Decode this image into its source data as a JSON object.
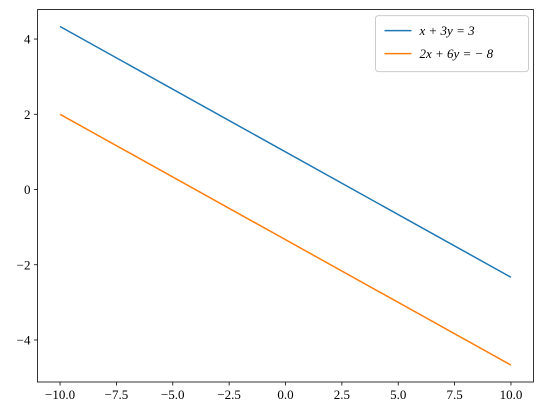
{
  "chart_data": {
    "type": "line",
    "x": [
      -10,
      10
    ],
    "series": [
      {
        "name": "x + 3y = 3",
        "color": "#1f77b4",
        "values": [
          4.333,
          -2.333
        ]
      },
      {
        "name": "2x + 6y = − 8",
        "color": "#ff7f0e",
        "values": [
          2,
          -4.667
        ]
      }
    ],
    "xlim": [
      -11,
      11
    ],
    "ylim": [
      -5.117,
      4.783
    ],
    "xticks": [
      {
        "value": -10,
        "label": "−10.0"
      },
      {
        "value": -7.5,
        "label": "−7.5"
      },
      {
        "value": -5,
        "label": "−5.0"
      },
      {
        "value": -2.5,
        "label": "−2.5"
      },
      {
        "value": 0,
        "label": "0.0"
      },
      {
        "value": 2.5,
        "label": "2.5"
      },
      {
        "value": 5,
        "label": "5.0"
      },
      {
        "value": 7.5,
        "label": "7.5"
      },
      {
        "value": 10,
        "label": "10.0"
      }
    ],
    "yticks": [
      {
        "value": -4,
        "label": "−4"
      },
      {
        "value": -2,
        "label": "−2"
      },
      0,
      2,
      4
    ],
    "legend": "upper right"
  }
}
